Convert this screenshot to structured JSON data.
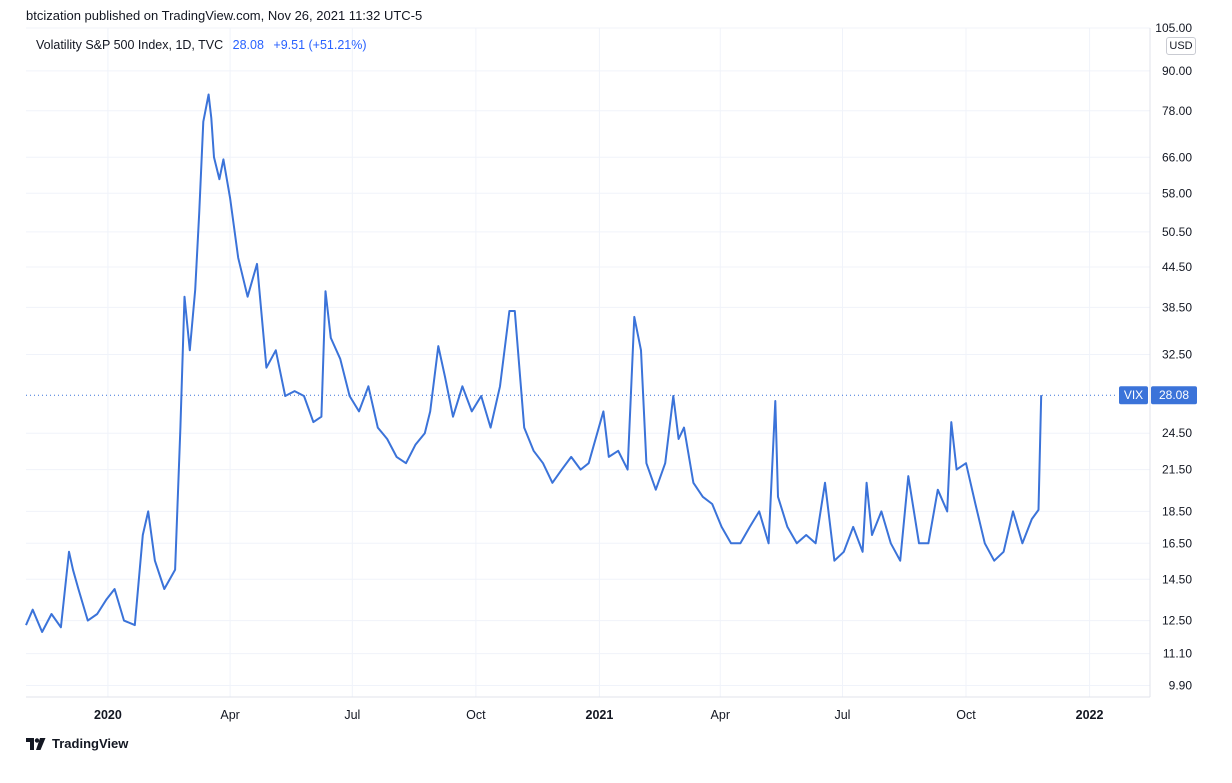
{
  "header": {
    "published_text": "btcization published on TradingView.com, Nov 26, 2021 11:32 UTC-5"
  },
  "legend": {
    "symbol_text": "Volatility S&P 500 Index, 1D, TVC",
    "last_value": "28.08",
    "change_text": "+9.51 (+51.21%)"
  },
  "price_axis": {
    "currency": "USD",
    "tick_labels": [
      "105.00",
      "90.00",
      "78.00",
      "66.00",
      "58.00",
      "50.50",
      "44.50",
      "38.50",
      "32.50",
      "28.08",
      "24.50",
      "21.50",
      "18.50",
      "16.50",
      "14.50",
      "12.50",
      "11.10",
      "9.90"
    ]
  },
  "price_tag": {
    "symbol": "VIX",
    "value": "28.08"
  },
  "footer": {
    "brand": "TradingView"
  },
  "colors": {
    "line": "#3b73d9",
    "tag_bg": "#3b73d9",
    "grid": "#f0f3fa",
    "axis_text": "#131722"
  },
  "chart_data": {
    "type": "line",
    "title": "Volatility S&P 500 Index, 1D, TVC",
    "xlabel": "",
    "ylabel": "",
    "y_scale": "log",
    "ylim": [
      9.5,
      105
    ],
    "xlim": [
      "2019-11-01",
      "2022-02-15"
    ],
    "grid": true,
    "x_tick_labels": [
      {
        "date": "2020-01-01",
        "label": "2020",
        "bold": true
      },
      {
        "date": "2020-04-01",
        "label": "Apr",
        "bold": false
      },
      {
        "date": "2020-07-01",
        "label": "Jul",
        "bold": false
      },
      {
        "date": "2020-10-01",
        "label": "Oct",
        "bold": false
      },
      {
        "date": "2021-01-01",
        "label": "2021",
        "bold": true
      },
      {
        "date": "2021-04-01",
        "label": "Apr",
        "bold": false
      },
      {
        "date": "2021-07-01",
        "label": "Jul",
        "bold": false
      },
      {
        "date": "2021-10-01",
        "label": "Oct",
        "bold": false
      },
      {
        "date": "2022-01-01",
        "label": "2022",
        "bold": true
      }
    ],
    "y_ticks": [
      105,
      90,
      78,
      66,
      58,
      50.5,
      44.5,
      38.5,
      32.5,
      24.5,
      21.5,
      18.5,
      16.5,
      14.5,
      12.5,
      11.1,
      9.9
    ],
    "last_value_line": 28.08,
    "series": [
      {
        "x": [
          "2019-11-01",
          "2019-11-06",
          "2019-11-13",
          "2019-11-20",
          "2019-11-27",
          "2019-12-03",
          "2019-12-06",
          "2019-12-10",
          "2019-12-17",
          "2019-12-24",
          "2019-12-31",
          "2020-01-06",
          "2020-01-13",
          "2020-01-21",
          "2020-01-27",
          "2020-01-31",
          "2020-02-05",
          "2020-02-12",
          "2020-02-20",
          "2020-02-24",
          "2020-02-27",
          "2020-03-02",
          "2020-03-06",
          "2020-03-09",
          "2020-03-12",
          "2020-03-16",
          "2020-03-18",
          "2020-03-20",
          "2020-03-24",
          "2020-03-27",
          "2020-04-01",
          "2020-04-07",
          "2020-04-14",
          "2020-04-21",
          "2020-04-28",
          "2020-05-05",
          "2020-05-12",
          "2020-05-19",
          "2020-05-26",
          "2020-06-02",
          "2020-06-08",
          "2020-06-11",
          "2020-06-15",
          "2020-06-22",
          "2020-06-29",
          "2020-07-06",
          "2020-07-13",
          "2020-07-20",
          "2020-07-27",
          "2020-08-03",
          "2020-08-10",
          "2020-08-17",
          "2020-08-24",
          "2020-08-28",
          "2020-09-03",
          "2020-09-08",
          "2020-09-14",
          "2020-09-21",
          "2020-09-28",
          "2020-10-05",
          "2020-10-12",
          "2020-10-19",
          "2020-10-26",
          "2020-10-30",
          "2020-11-06",
          "2020-11-13",
          "2020-11-20",
          "2020-11-27",
          "2020-12-04",
          "2020-12-11",
          "2020-12-18",
          "2020-12-24",
          "2021-01-04",
          "2021-01-08",
          "2021-01-15",
          "2021-01-22",
          "2021-01-27",
          "2021-02-01",
          "2021-02-05",
          "2021-02-12",
          "2021-02-19",
          "2021-02-25",
          "2021-03-01",
          "2021-03-05",
          "2021-03-12",
          "2021-03-19",
          "2021-03-26",
          "2021-04-02",
          "2021-04-09",
          "2021-04-16",
          "2021-04-23",
          "2021-04-30",
          "2021-05-07",
          "2021-05-12",
          "2021-05-14",
          "2021-05-21",
          "2021-05-28",
          "2021-06-04",
          "2021-06-11",
          "2021-06-18",
          "2021-06-25",
          "2021-07-02",
          "2021-07-09",
          "2021-07-16",
          "2021-07-19",
          "2021-07-23",
          "2021-07-30",
          "2021-08-06",
          "2021-08-13",
          "2021-08-19",
          "2021-08-27",
          "2021-09-03",
          "2021-09-10",
          "2021-09-17",
          "2021-09-20",
          "2021-09-24",
          "2021-10-01",
          "2021-10-08",
          "2021-10-15",
          "2021-10-22",
          "2021-10-29",
          "2021-11-05",
          "2021-11-12",
          "2021-11-19",
          "2021-11-24",
          "2021-11-26"
        ],
        "y": [
          12.3,
          13.0,
          12.0,
          12.8,
          12.2,
          16.0,
          15.0,
          14.0,
          12.5,
          12.8,
          13.5,
          14.0,
          12.5,
          12.3,
          17.0,
          18.5,
          15.5,
          14.0,
          15.0,
          25.0,
          40.0,
          33.0,
          41.0,
          54.0,
          75.0,
          82.7,
          76.0,
          66.0,
          61.0,
          65.5,
          57.0,
          46.0,
          40.0,
          45.0,
          31.0,
          33.0,
          28.0,
          28.5,
          28.0,
          25.5,
          26.0,
          40.8,
          34.5,
          32.0,
          28.0,
          26.5,
          29.0,
          25.0,
          24.0,
          22.5,
          22.0,
          23.5,
          24.5,
          26.5,
          33.5,
          30.0,
          26.0,
          29.0,
          26.5,
          28.0,
          25.0,
          29.0,
          38.0,
          38.0,
          25.0,
          23.0,
          22.0,
          20.5,
          21.5,
          22.5,
          21.5,
          22.0,
          26.5,
          22.5,
          23.0,
          21.5,
          37.2,
          33.0,
          22.0,
          20.0,
          22.0,
          28.0,
          24.0,
          25.0,
          20.5,
          19.5,
          19.0,
          17.5,
          16.5,
          16.5,
          17.5,
          18.5,
          16.5,
          27.5,
          19.5,
          17.5,
          16.5,
          17.0,
          16.5,
          20.5,
          15.5,
          16.0,
          17.5,
          16.0,
          20.5,
          17.0,
          18.5,
          16.5,
          15.5,
          21.0,
          16.5,
          16.5,
          20.0,
          18.5,
          25.5,
          21.5,
          22.0,
          19.0,
          16.5,
          15.5,
          16.0,
          18.5,
          16.5,
          18.0,
          18.6,
          28.08
        ]
      }
    ]
  }
}
